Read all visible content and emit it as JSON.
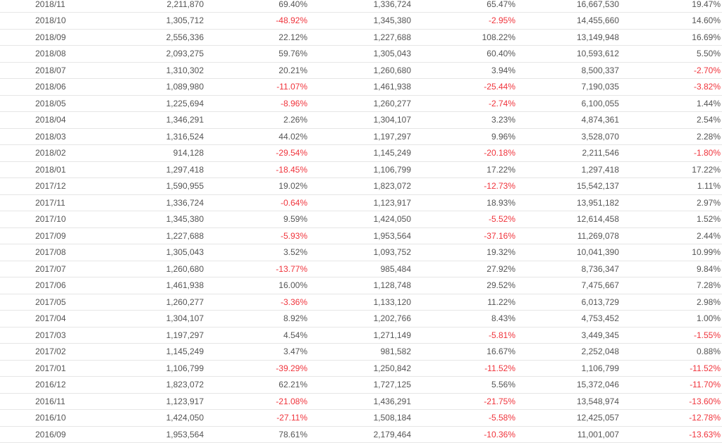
{
  "table": {
    "rows": [
      [
        "2018/11",
        "2,211,870",
        "69.40%",
        "1,336,724",
        "65.47%",
        "16,667,530",
        "19.47%"
      ],
      [
        "2018/10",
        "1,305,712",
        "-48.92%",
        "1,345,380",
        "-2.95%",
        "14,455,660",
        "14.60%"
      ],
      [
        "2018/09",
        "2,556,336",
        "22.12%",
        "1,227,688",
        "108.22%",
        "13,149,948",
        "16.69%"
      ],
      [
        "2018/08",
        "2,093,275",
        "59.76%",
        "1,305,043",
        "60.40%",
        "10,593,612",
        "5.50%"
      ],
      [
        "2018/07",
        "1,310,302",
        "20.21%",
        "1,260,680",
        "3.94%",
        "8,500,337",
        "-2.70%"
      ],
      [
        "2018/06",
        "1,089,980",
        "-11.07%",
        "1,461,938",
        "-25.44%",
        "7,190,035",
        "-3.82%"
      ],
      [
        "2018/05",
        "1,225,694",
        "-8.96%",
        "1,260,277",
        "-2.74%",
        "6,100,055",
        "1.44%"
      ],
      [
        "2018/04",
        "1,346,291",
        "2.26%",
        "1,304,107",
        "3.23%",
        "4,874,361",
        "2.54%"
      ],
      [
        "2018/03",
        "1,316,524",
        "44.02%",
        "1,197,297",
        "9.96%",
        "3,528,070",
        "2.28%"
      ],
      [
        "2018/02",
        "914,128",
        "-29.54%",
        "1,145,249",
        "-20.18%",
        "2,211,546",
        "-1.80%"
      ],
      [
        "2018/01",
        "1,297,418",
        "-18.45%",
        "1,106,799",
        "17.22%",
        "1,297,418",
        "17.22%"
      ],
      [
        "2017/12",
        "1,590,955",
        "19.02%",
        "1,823,072",
        "-12.73%",
        "15,542,137",
        "1.11%"
      ],
      [
        "2017/11",
        "1,336,724",
        "-0.64%",
        "1,123,917",
        "18.93%",
        "13,951,182",
        "2.97%"
      ],
      [
        "2017/10",
        "1,345,380",
        "9.59%",
        "1,424,050",
        "-5.52%",
        "12,614,458",
        "1.52%"
      ],
      [
        "2017/09",
        "1,227,688",
        "-5.93%",
        "1,953,564",
        "-37.16%",
        "11,269,078",
        "2.44%"
      ],
      [
        "2017/08",
        "1,305,043",
        "3.52%",
        "1,093,752",
        "19.32%",
        "10,041,390",
        "10.99%"
      ],
      [
        "2017/07",
        "1,260,680",
        "-13.77%",
        "985,484",
        "27.92%",
        "8,736,347",
        "9.84%"
      ],
      [
        "2017/06",
        "1,461,938",
        "16.00%",
        "1,128,748",
        "29.52%",
        "7,475,667",
        "7.28%"
      ],
      [
        "2017/05",
        "1,260,277",
        "-3.36%",
        "1,133,120",
        "11.22%",
        "6,013,729",
        "2.98%"
      ],
      [
        "2017/04",
        "1,304,107",
        "8.92%",
        "1,202,766",
        "8.43%",
        "4,753,452",
        "1.00%"
      ],
      [
        "2017/03",
        "1,197,297",
        "4.54%",
        "1,271,149",
        "-5.81%",
        "3,449,345",
        "-1.55%"
      ],
      [
        "2017/02",
        "1,145,249",
        "3.47%",
        "981,582",
        "16.67%",
        "2,252,048",
        "0.88%"
      ],
      [
        "2017/01",
        "1,106,799",
        "-39.29%",
        "1,250,842",
        "-11.52%",
        "1,106,799",
        "-11.52%"
      ],
      [
        "2016/12",
        "1,823,072",
        "62.21%",
        "1,727,125",
        "5.56%",
        "15,372,046",
        "-11.70%"
      ],
      [
        "2016/11",
        "1,123,917",
        "-21.08%",
        "1,436,291",
        "-21.75%",
        "13,548,974",
        "-13.60%"
      ],
      [
        "2016/10",
        "1,424,050",
        "-27.11%",
        "1,508,184",
        "-5.58%",
        "12,425,057",
        "-12.78%"
      ],
      [
        "2016/09",
        "1,953,564",
        "78.61%",
        "2,179,464",
        "-10.36%",
        "11,001,007",
        "-13.63%"
      ]
    ]
  }
}
